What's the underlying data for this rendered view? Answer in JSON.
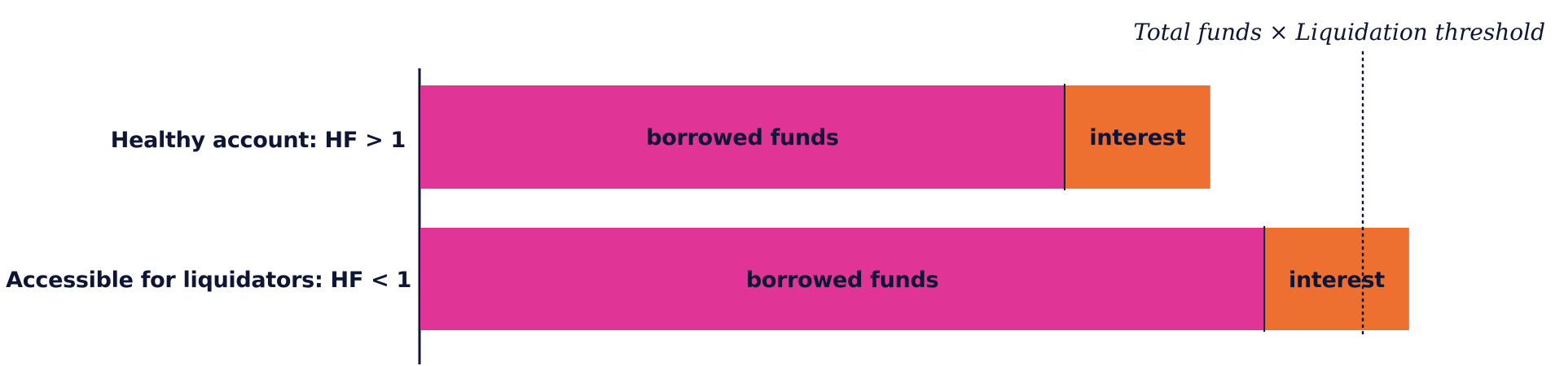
{
  "threshold": {
    "label": "Total funds × Liquidation threshold",
    "value": 1.0
  },
  "colors": {
    "borrowed": "#e03596",
    "interest": "#ee7030",
    "ink": "#0f1535"
  },
  "rows": [
    {
      "label": "Healthy account: HF > 1",
      "segments": [
        {
          "label": "borrowed funds",
          "value": 0.6836,
          "color_key": "borrowed"
        },
        {
          "label": "interest",
          "value": 0.1546,
          "color_key": "interest"
        }
      ]
    },
    {
      "label": "Accessible for liquidators: HF < 1",
      "segments": [
        {
          "label": "borrowed funds",
          "value": 0.8955,
          "color_key": "borrowed"
        },
        {
          "label": "interest",
          "value": 0.1536,
          "color_key": "interest"
        }
      ]
    }
  ]
}
